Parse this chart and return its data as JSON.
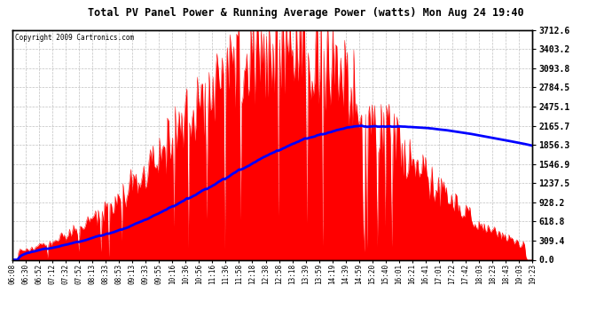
{
  "title": "Total PV Panel Power & Running Average Power (watts) Mon Aug 24 19:40",
  "copyright": "Copyright 2009 Cartronics.com",
  "background_color": "#ffffff",
  "plot_bg_color": "#ffffff",
  "bar_color": "#ff0000",
  "line_color": "#0000ff",
  "grid_color": "#c0c0c0",
  "ytick_labels": [
    "0.0",
    "309.4",
    "618.8",
    "928.2",
    "1237.5",
    "1546.9",
    "1856.3",
    "2165.7",
    "2475.1",
    "2784.5",
    "3093.8",
    "3403.2",
    "3712.6"
  ],
  "ytick_values": [
    0.0,
    309.4,
    618.8,
    928.2,
    1237.5,
    1546.9,
    1856.3,
    2165.7,
    2475.1,
    2784.5,
    3093.8,
    3403.2,
    3712.6
  ],
  "ymax": 3712.6,
  "xtick_labels": [
    "06:08",
    "06:30",
    "06:52",
    "07:12",
    "07:32",
    "07:52",
    "08:13",
    "08:33",
    "08:53",
    "09:13",
    "09:33",
    "09:55",
    "10:16",
    "10:36",
    "10:56",
    "11:16",
    "11:36",
    "11:58",
    "12:18",
    "12:38",
    "12:58",
    "13:18",
    "13:39",
    "13:59",
    "14:19",
    "14:39",
    "14:59",
    "15:20",
    "15:40",
    "16:01",
    "16:21",
    "16:41",
    "17:01",
    "17:22",
    "17:42",
    "18:03",
    "18:23",
    "18:43",
    "19:03",
    "19:23"
  ],
  "n_points": 400
}
